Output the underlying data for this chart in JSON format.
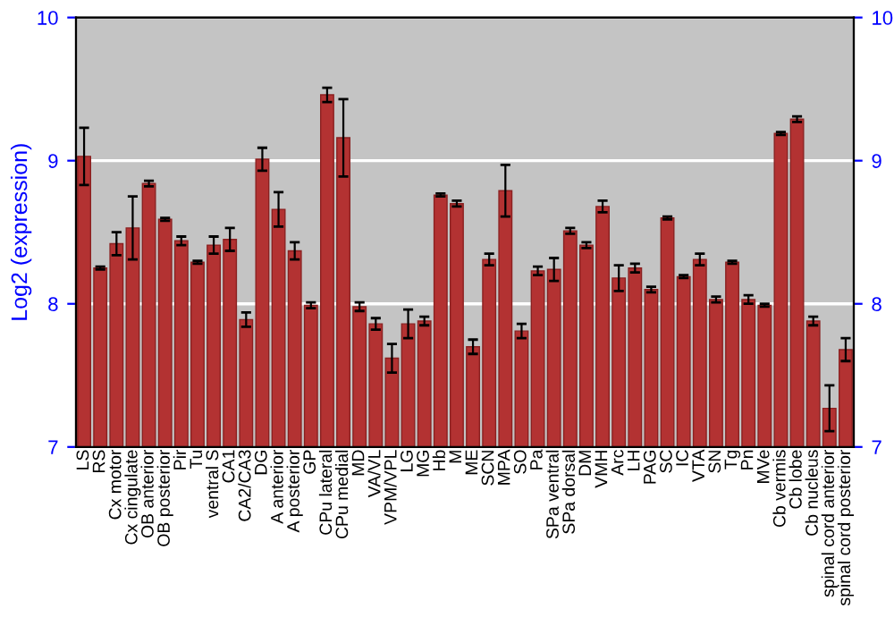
{
  "chart_data": {
    "type": "bar",
    "ylabel": "Log2 (expression)",
    "categories": [
      "LS",
      "RS",
      "Cx motor",
      "Cx cingulate",
      "OB anterior",
      "OB posterior",
      "Pir",
      "Tu",
      "ventral S",
      "CA1",
      "CA2/CA3",
      "DG",
      "A anterior",
      "A posterior",
      "GP",
      "CPu lateral",
      "CPu medial",
      "MD",
      "VA/VL",
      "VPM/VPL",
      "LG",
      "MG",
      "Hb",
      "M",
      "ME",
      "SCN",
      "MPA",
      "SO",
      "Pa",
      "SPa ventral",
      "SPa dorsal",
      "DM",
      "VMH",
      "Arc",
      "LH",
      "PAG",
      "SC",
      "IC",
      "VTA",
      "SN",
      "Tg",
      "Pn",
      "MVe",
      "Cb vermis",
      "Cb lobe",
      "Cb nucleus",
      "spinal cord anterior",
      "spinal cord posterior"
    ],
    "values": [
      9.03,
      8.25,
      8.42,
      8.53,
      8.84,
      8.59,
      8.44,
      8.29,
      8.41,
      8.45,
      7.89,
      9.01,
      8.66,
      8.37,
      7.99,
      9.46,
      9.16,
      7.98,
      7.86,
      7.62,
      7.86,
      7.88,
      8.76,
      8.7,
      7.7,
      8.31,
      8.79,
      7.81,
      8.23,
      8.24,
      8.51,
      8.41,
      8.68,
      8.18,
      8.25,
      8.1,
      8.6,
      8.19,
      8.31,
      8.03,
      8.29,
      8.03,
      7.99,
      9.19,
      9.29,
      7.88,
      7.27,
      7.68
    ],
    "errors": [
      0.2,
      0.01,
      0.08,
      0.22,
      0.02,
      0.01,
      0.03,
      0.01,
      0.06,
      0.08,
      0.05,
      0.08,
      0.12,
      0.06,
      0.02,
      0.05,
      0.27,
      0.03,
      0.04,
      0.1,
      0.1,
      0.03,
      0.01,
      0.02,
      0.05,
      0.04,
      0.18,
      0.05,
      0.03,
      0.08,
      0.02,
      0.02,
      0.04,
      0.09,
      0.03,
      0.02,
      0.01,
      0.01,
      0.04,
      0.02,
      0.01,
      0.03,
      0.01,
      0.01,
      0.02,
      0.03,
      0.16,
      0.08
    ],
    "color": "#b33232",
    "ylim": [
      7,
      10
    ],
    "yticks": [
      7,
      8,
      9,
      10
    ],
    "y2lim": [
      7,
      10
    ],
    "y2ticks": [
      7,
      8,
      9,
      10
    ],
    "grid": "y"
  }
}
